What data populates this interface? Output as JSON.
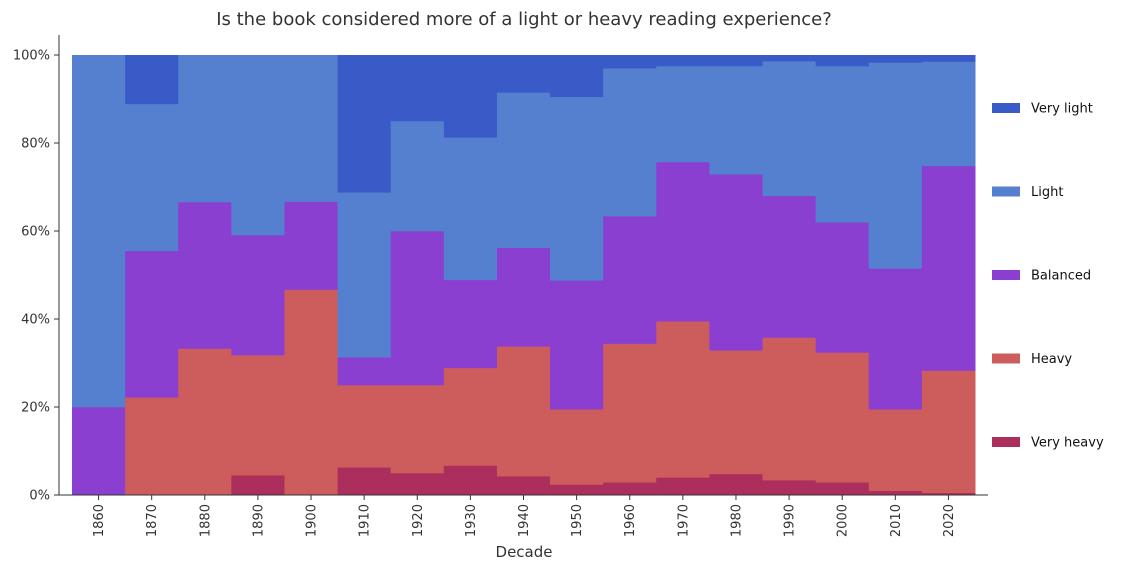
{
  "chart_data": {
    "type": "bar",
    "stacked": true,
    "normalized": true,
    "title": "Is the book considered more of a light or heavy reading experience?",
    "xlabel": "Decade",
    "ylabel": "",
    "ylim": [
      0,
      100
    ],
    "yticks": [
      "0%",
      "20%",
      "40%",
      "60%",
      "80%",
      "100%"
    ],
    "categories": [
      "1860",
      "1870",
      "1880",
      "1890",
      "1900",
      "1910",
      "1920",
      "1930",
      "1940",
      "1950",
      "1960",
      "1970",
      "1980",
      "1990",
      "2000",
      "2010",
      "2020"
    ],
    "legend_position": "right",
    "grid": false,
    "series": [
      {
        "name": "Very heavy",
        "color": "#ab2e5c",
        "values": [
          0,
          0,
          0,
          4.5,
          0,
          6.3,
          5.0,
          6.7,
          4.3,
          2.4,
          2.9,
          4.0,
          4.8,
          3.4,
          2.9,
          1.0,
          0.5
        ]
      },
      {
        "name": "Heavy",
        "color": "#cd5c5c",
        "values": [
          0,
          22.2,
          33.3,
          27.3,
          46.7,
          18.7,
          20.0,
          22.2,
          29.5,
          17.1,
          31.5,
          35.5,
          28.1,
          32.4,
          29.5,
          18.5,
          27.8
        ]
      },
      {
        "name": "Balanced",
        "color": "#8a3fd1",
        "values": [
          20.0,
          33.3,
          33.3,
          27.3,
          20.0,
          6.3,
          35.0,
          20.0,
          22.4,
          29.3,
          29.0,
          36.2,
          40.0,
          32.2,
          29.6,
          32.0,
          46.5
        ]
      },
      {
        "name": "Light",
        "color": "#5580d0",
        "values": [
          80.0,
          33.4,
          33.4,
          40.9,
          33.3,
          37.5,
          25.0,
          32.4,
          35.3,
          41.7,
          33.6,
          21.8,
          24.6,
          30.6,
          35.5,
          46.8,
          23.7
        ]
      },
      {
        "name": "Very light",
        "color": "#3a5bc7",
        "values": [
          0,
          11.1,
          0,
          0,
          0,
          31.2,
          15.0,
          18.7,
          8.5,
          9.5,
          3.0,
          2.5,
          2.5,
          1.4,
          2.5,
          1.7,
          1.5
        ]
      }
    ]
  }
}
